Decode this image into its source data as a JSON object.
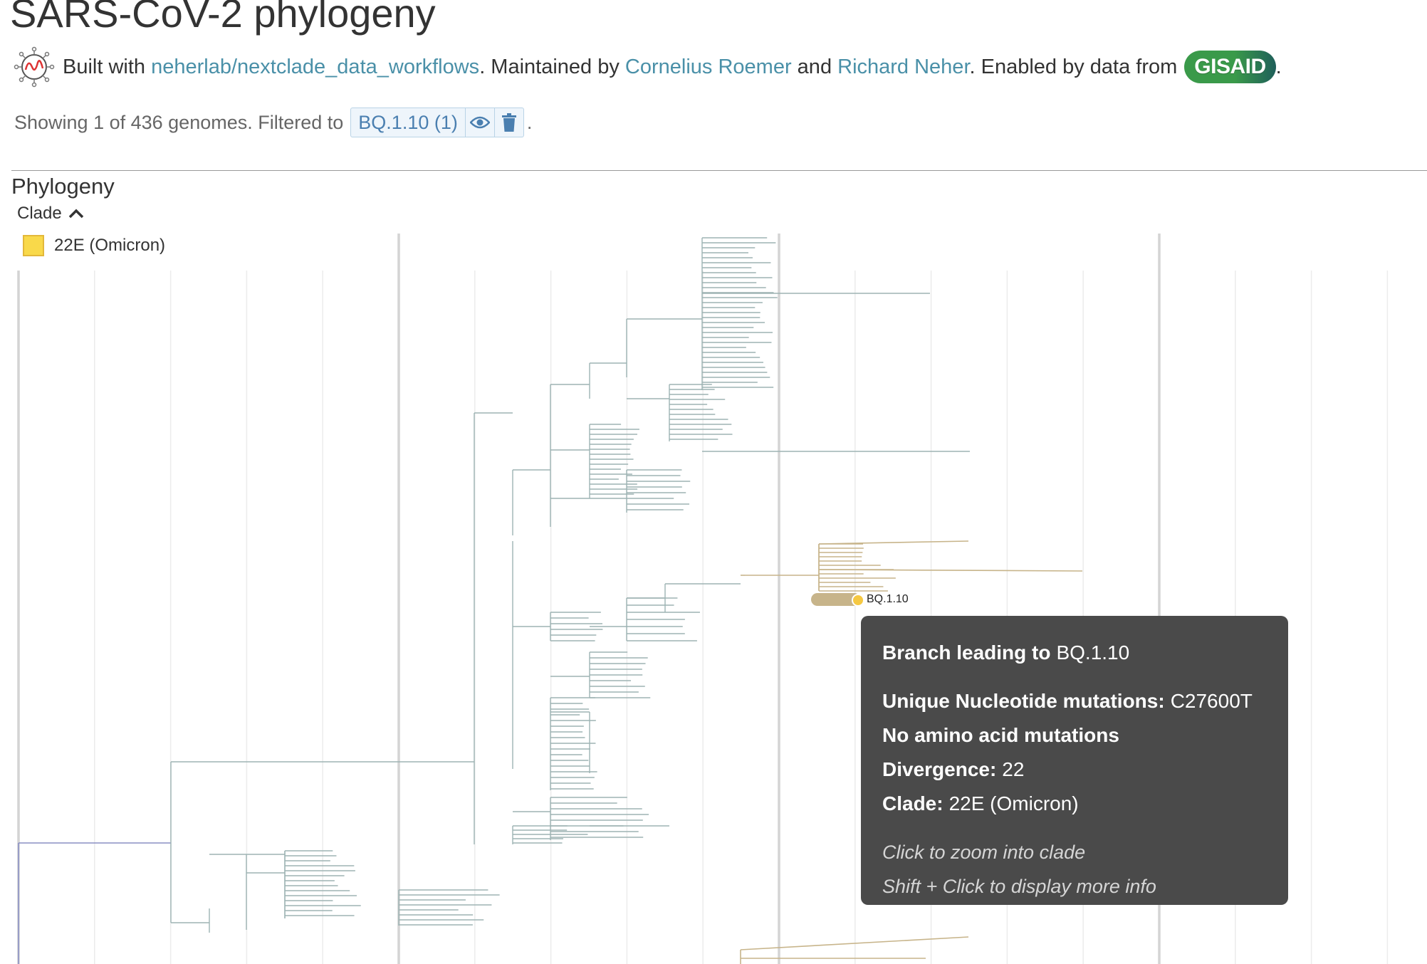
{
  "header": {
    "title": "SARS-CoV-2 phylogeny",
    "built_with_prefix": "Built with ",
    "built_with_link": "neherlab/nextclade_data_workflows",
    "maintained_prefix": ". Maintained by ",
    "maintainer_1": "Cornelius Roemer",
    "and_text": " and ",
    "maintainer_2": "Richard Neher",
    "enabled_text": ". Enabled by data from ",
    "gisaid_logo": "GISAID",
    "period": "."
  },
  "filter": {
    "showing_text": "Showing 1 of 436 genomes. Filtered to",
    "pill_label": "BQ.1.10 (1)",
    "visibility_icon": "eye-icon",
    "delete_icon": "trash-icon",
    "period": "."
  },
  "panel": {
    "section_title": "Phylogeny",
    "legend_toggle_label": "Clade",
    "legend_items": [
      {
        "label": "22E (Omicron)",
        "color": "#f9d94a"
      }
    ]
  },
  "tree": {
    "selected_label": "BQ.1.10",
    "branch_color": "#9db3b3",
    "root_color": "#8a8fc4",
    "highlight_color": "#c7b48a",
    "node_color": "#f5c842"
  },
  "tooltip": {
    "title_key": "Branch leading to",
    "title_value": "BQ.1.10",
    "mut_key": "Unique Nucleotide mutations:",
    "mut_value": "C27600T",
    "aa_text": "No amino acid mutations",
    "div_key": "Divergence:",
    "div_value": "22",
    "clade_key": "Clade:",
    "clade_value": "22E (Omicron)",
    "hint_1": "Click to zoom into clade",
    "hint_2": "Shift + Click to display more info"
  },
  "colors": {
    "link": "#4a90a8",
    "tooltip_bg": "#4a4a4a",
    "pill_text": "#4a7fb0"
  }
}
